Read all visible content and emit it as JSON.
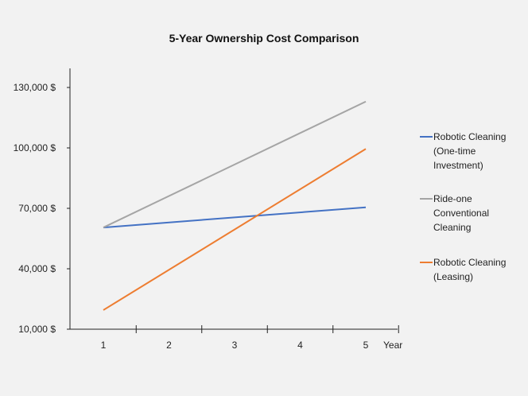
{
  "chart_data": {
    "type": "line",
    "title": "5-Year Ownership Cost Comparison",
    "xlabel": "Year",
    "ylabel": "",
    "x": [
      1,
      5
    ],
    "xticks": [
      "1",
      "2",
      "3",
      "4",
      "5"
    ],
    "yticks": [
      10000,
      40000,
      70000,
      100000,
      130000
    ],
    "ytick_labels": [
      "10,000 $",
      "40,000 $",
      "70,000 $",
      "100,000 $",
      "130,000 $"
    ],
    "xlim": [
      0.5,
      5.5
    ],
    "ylim": [
      10000,
      140000
    ],
    "grid": false,
    "legend_position": "right",
    "series": [
      {
        "name": "Robotic Cleaning (One-time Investment)",
        "legend_lines": [
          "Robotic Cleaning",
          "(One-time",
          "Investment)"
        ],
        "values": [
          60500,
          70500
        ],
        "color": "#4472c4"
      },
      {
        "name": "Ride-one Conventional Cleaning",
        "legend_lines": [
          "Ride-one",
          "Conventional",
          "Cleaning"
        ],
        "values": [
          60500,
          123000
        ],
        "color": "#a5a5a5"
      },
      {
        "name": "Robotic Cleaning (Leasing)",
        "legend_lines": [
          "Robotic Cleaning",
          "(Leasing)"
        ],
        "values": [
          19500,
          99500
        ],
        "color": "#ed7d31"
      }
    ]
  }
}
